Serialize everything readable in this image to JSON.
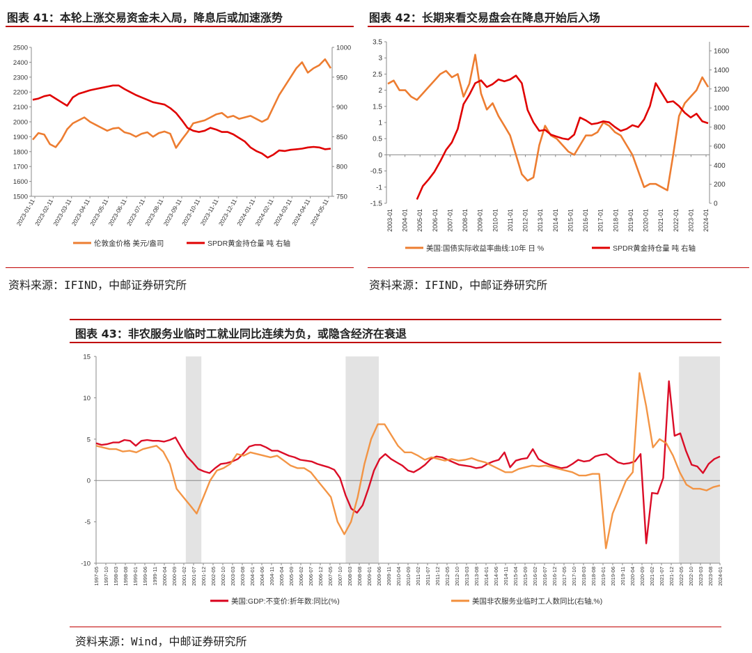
{
  "panels": [
    {
      "title": "图表 41：本轮上涨交易资金未入局，降息后或加速涨势",
      "source": "资料来源：IFIND，中邮证券研究所"
    },
    {
      "title": "图表 42：长期来看交易盘会在降息开始后入场",
      "source": "资料来源：IFIND，中邮证券研究所"
    },
    {
      "title": "图表 43：非农服务业临时工就业同比连续为负，或隐含经济在衰退",
      "source": "资料来源：Wind，中邮证券研究所"
    }
  ],
  "chart_data": [
    {
      "type": "line",
      "y_left_ticks": [
        "2500",
        "2400",
        "2300",
        "2200",
        "2100",
        "2000",
        "1900",
        "1800",
        "1700",
        "1600",
        "1500"
      ],
      "y_right_ticks": [
        "1000",
        "950",
        "900",
        "850",
        "800",
        "750"
      ],
      "x_ticks": [
        "2023-01-11",
        "2023-02-11",
        "2023-03-11",
        "2023-04-11",
        "2023-05-11",
        "2023-06-11",
        "2023-07-11",
        "2023-08-11",
        "2023-09-11",
        "2023-10-11",
        "2023-11-11",
        "2023-12-11",
        "2024-01-11",
        "2024-02-11",
        "2024-03-11",
        "2024-04-11",
        "2024-05-11"
      ],
      "ylim_left": [
        1500,
        2500
      ],
      "ylim_right": [
        750,
        1000
      ],
      "series": [
        {
          "name": "伦敦金价格 美元/盎司",
          "axis": "left",
          "color": "#ed7d31",
          "values": [
            1880,
            1925,
            1915,
            1850,
            1830,
            1880,
            1950,
            1990,
            2010,
            2030,
            2000,
            1980,
            1960,
            1940,
            1955,
            1960,
            1930,
            1920,
            1900,
            1920,
            1930,
            1900,
            1925,
            1935,
            1920,
            1825,
            1880,
            1930,
            1990,
            2000,
            2010,
            2030,
            2050,
            2060,
            2030,
            2040,
            2020,
            2030,
            2040,
            2020,
            2000,
            2020,
            2100,
            2180,
            2240,
            2300,
            2360,
            2400,
            2330,
            2360,
            2380,
            2420,
            2360
          ]
        },
        {
          "name": "SPDR黄金持仓量 吨 右轴",
          "axis": "right",
          "color": "#e00000",
          "values": [
            912,
            914,
            918,
            920,
            914,
            908,
            902,
            916,
            922,
            925,
            928,
            930,
            932,
            934,
            936,
            936,
            930,
            925,
            920,
            916,
            912,
            908,
            906,
            904,
            898,
            890,
            878,
            865,
            860,
            858,
            860,
            865,
            862,
            858,
            858,
            854,
            848,
            842,
            832,
            826,
            822,
            815,
            820,
            827,
            826,
            828,
            829,
            830,
            832,
            833,
            832,
            829,
            830
          ]
        }
      ],
      "legend": "bottom"
    },
    {
      "type": "line",
      "y_left_ticks": [
        "3.5",
        "3",
        "2.5",
        "2",
        "1.5",
        "1",
        "0.5",
        "0",
        "-0.5",
        "-1",
        "-1.5"
      ],
      "y_right_ticks": [
        "1600",
        "1400",
        "1200",
        "1000",
        "800",
        "600",
        "400",
        "200",
        "0"
      ],
      "x_ticks": [
        "2003-01",
        "2004-01",
        "2005-01",
        "2006-01",
        "2007-01",
        "2008-01",
        "2009-01",
        "2010-01",
        "2011-01",
        "2012-01",
        "2013-01",
        "2014-01",
        "2015-01",
        "2016-01",
        "2017-01",
        "2018-01",
        "2019-01",
        "2020-01",
        "2021-01",
        "2022-01",
        "2023-01",
        "2024-01"
      ],
      "ylim_left": [
        -1.5,
        3.5
      ],
      "ylim_right": [
        0,
        1600
      ],
      "series": [
        {
          "name": "美国:国债实际收益率曲线:10年 日 %",
          "axis": "left",
          "color": "#ed7d31",
          "values": [
            2.2,
            2.3,
            2.0,
            2.0,
            1.8,
            1.7,
            1.9,
            2.1,
            2.3,
            2.5,
            2.6,
            2.4,
            2.5,
            1.8,
            2.2,
            3.1,
            1.9,
            1.4,
            1.6,
            1.2,
            0.9,
            0.6,
            0.0,
            -0.6,
            -0.8,
            -0.7,
            0.3,
            0.9,
            0.6,
            0.5,
            0.3,
            0.1,
            0.0,
            0.3,
            0.6,
            0.6,
            0.7,
            1.0,
            0.9,
            0.7,
            0.6,
            0.3,
            0.0,
            -0.5,
            -1.0,
            -0.9,
            -0.9,
            -1.0,
            -1.1,
            0.0,
            1.2,
            1.6,
            1.8,
            2.0,
            2.4,
            2.1
          ]
        },
        {
          "name": "SPDR黄金持仓量 吨 右轴",
          "axis": "right",
          "color": "#e00000",
          "values": [
            null,
            null,
            null,
            null,
            null,
            40,
            180,
            250,
            330,
            440,
            560,
            640,
            780,
            1040,
            1140,
            1260,
            1290,
            1220,
            1250,
            1300,
            1280,
            1300,
            1340,
            1260,
            980,
            850,
            760,
            770,
            720,
            700,
            680,
            670,
            720,
            900,
            870,
            830,
            840,
            860,
            850,
            800,
            760,
            780,
            820,
            800,
            880,
            1020,
            1260,
            1160,
            1060,
            1070,
            1020,
            950,
            900,
            940,
            860,
            840
          ]
        }
      ],
      "legend": "bottom"
    },
    {
      "type": "line",
      "y_ticks": [
        "15",
        "10",
        "5",
        "0",
        "-5",
        "-10"
      ],
      "ylim": [
        -10,
        15
      ],
      "x_ticks": [
        "1997-05",
        "1997-10",
        "1998-03",
        "1998-08",
        "1999-01",
        "1999-06",
        "1999-11",
        "2000-04",
        "2000-09",
        "2001-02",
        "2001-07",
        "2001-12",
        "2002-05",
        "2002-10",
        "2003-03",
        "2003-08",
        "2004-01",
        "2004-06",
        "2004-11",
        "2005-04",
        "2005-09",
        "2006-02",
        "2006-07",
        "2006-12",
        "2007-05",
        "2007-10",
        "2008-03",
        "2008-08",
        "2009-01",
        "2009-06",
        "2009-11",
        "2010-04",
        "2010-09",
        "2011-02",
        "2011-07",
        "2011-12",
        "2012-05",
        "2012-10",
        "2013-03",
        "2013-08",
        "2014-01",
        "2014-06",
        "2014-11",
        "2015-04",
        "2015-09",
        "2016-02",
        "2016-07",
        "2016-12",
        "2017-05",
        "2017-10",
        "2018-03",
        "2018-08",
        "2019-01",
        "2019-06",
        "2019-11",
        "2020-04",
        "2020-09",
        "2021-02",
        "2021-07",
        "2021-12",
        "2022-05",
        "2022-10",
        "2023-03",
        "2023-08",
        "2024-01"
      ],
      "recession_shading": [
        [
          "2001-03",
          "2001-11"
        ],
        [
          "2008-01",
          "2009-06"
        ],
        [
          "2022-04",
          "2024-03"
        ]
      ],
      "series": [
        {
          "name": "美国:GDP:不变价:折年数:同比(%)",
          "color": "#d9001b",
          "values": [
            4.5,
            4.3,
            4.4,
            4.6,
            4.6,
            4.9,
            4.8,
            4.2,
            4.8,
            4.9,
            4.8,
            4.8,
            4.7,
            4.9,
            5.2,
            4.0,
            2.9,
            2.2,
            1.4,
            1.1,
            0.9,
            1.5,
            2.0,
            2.1,
            2.3,
            2.6,
            3.3,
            4.1,
            4.3,
            4.3,
            4.0,
            3.6,
            3.6,
            3.3,
            3.0,
            2.8,
            2.5,
            2.4,
            2.3,
            2.0,
            1.8,
            1.6,
            1.3,
            0.3,
            -1.8,
            -3.4,
            -3.9,
            -3.0,
            -1.0,
            1.2,
            2.6,
            3.2,
            2.6,
            2.2,
            1.8,
            1.2,
            1.0,
            1.4,
            1.9,
            2.6,
            2.9,
            2.8,
            2.5,
            2.2,
            1.9,
            1.8,
            1.7,
            1.5,
            1.6,
            2.0,
            2.3,
            2.5,
            3.4,
            1.6,
            2.4,
            2.6,
            2.7,
            3.8,
            2.6,
            2.2,
            1.9,
            1.7,
            1.5,
            1.6,
            2.0,
            2.5,
            2.3,
            2.4,
            2.9,
            3.1,
            3.2,
            2.7,
            2.2,
            2.0,
            2.1,
            2.3,
            3.2,
            -7.6,
            -1.5,
            -1.6,
            0.3,
            12.0,
            5.4,
            5.7,
            3.6,
            1.9,
            1.7,
            0.9,
            2.0,
            2.6,
            2.9
          ]
        },
        {
          "name": "美国非农服务业临时工人数同比(右轴,%)",
          "color": "#f28f3b",
          "values": [
            4.2,
            4.0,
            3.8,
            3.8,
            3.5,
            3.6,
            3.4,
            3.8,
            4.0,
            4.2,
            3.5,
            2.0,
            -1.0,
            -2.0,
            -3.0,
            -4.0,
            -2.0,
            0.0,
            1.2,
            1.5,
            2.0,
            3.2,
            3.0,
            3.4,
            3.2,
            3.0,
            2.8,
            3.0,
            2.4,
            1.8,
            1.5,
            1.5,
            1.0,
            0.0,
            -1.0,
            -2.0,
            -5.0,
            -6.5,
            -5.0,
            -2.0,
            2.0,
            5.0,
            6.8,
            6.8,
            5.5,
            4.2,
            3.4,
            3.4,
            3.0,
            2.5,
            2.8,
            2.6,
            2.4,
            2.6,
            2.4,
            2.5,
            2.7,
            2.4,
            2.2,
            1.8,
            1.4,
            1.0,
            1.0,
            1.4,
            1.6,
            1.8,
            1.7,
            1.8,
            1.6,
            1.4,
            1.2,
            1.0,
            0.6,
            0.6,
            0.8,
            0.8,
            -8.2,
            -4.0,
            -2.0,
            0.0,
            1.0,
            13.0,
            9.0,
            4.0,
            5.0,
            4.5,
            3.0,
            1.0,
            -0.5,
            -1.0,
            -1.0,
            -1.2,
            -0.8,
            -0.6
          ]
        }
      ],
      "legend": "bottom"
    }
  ]
}
